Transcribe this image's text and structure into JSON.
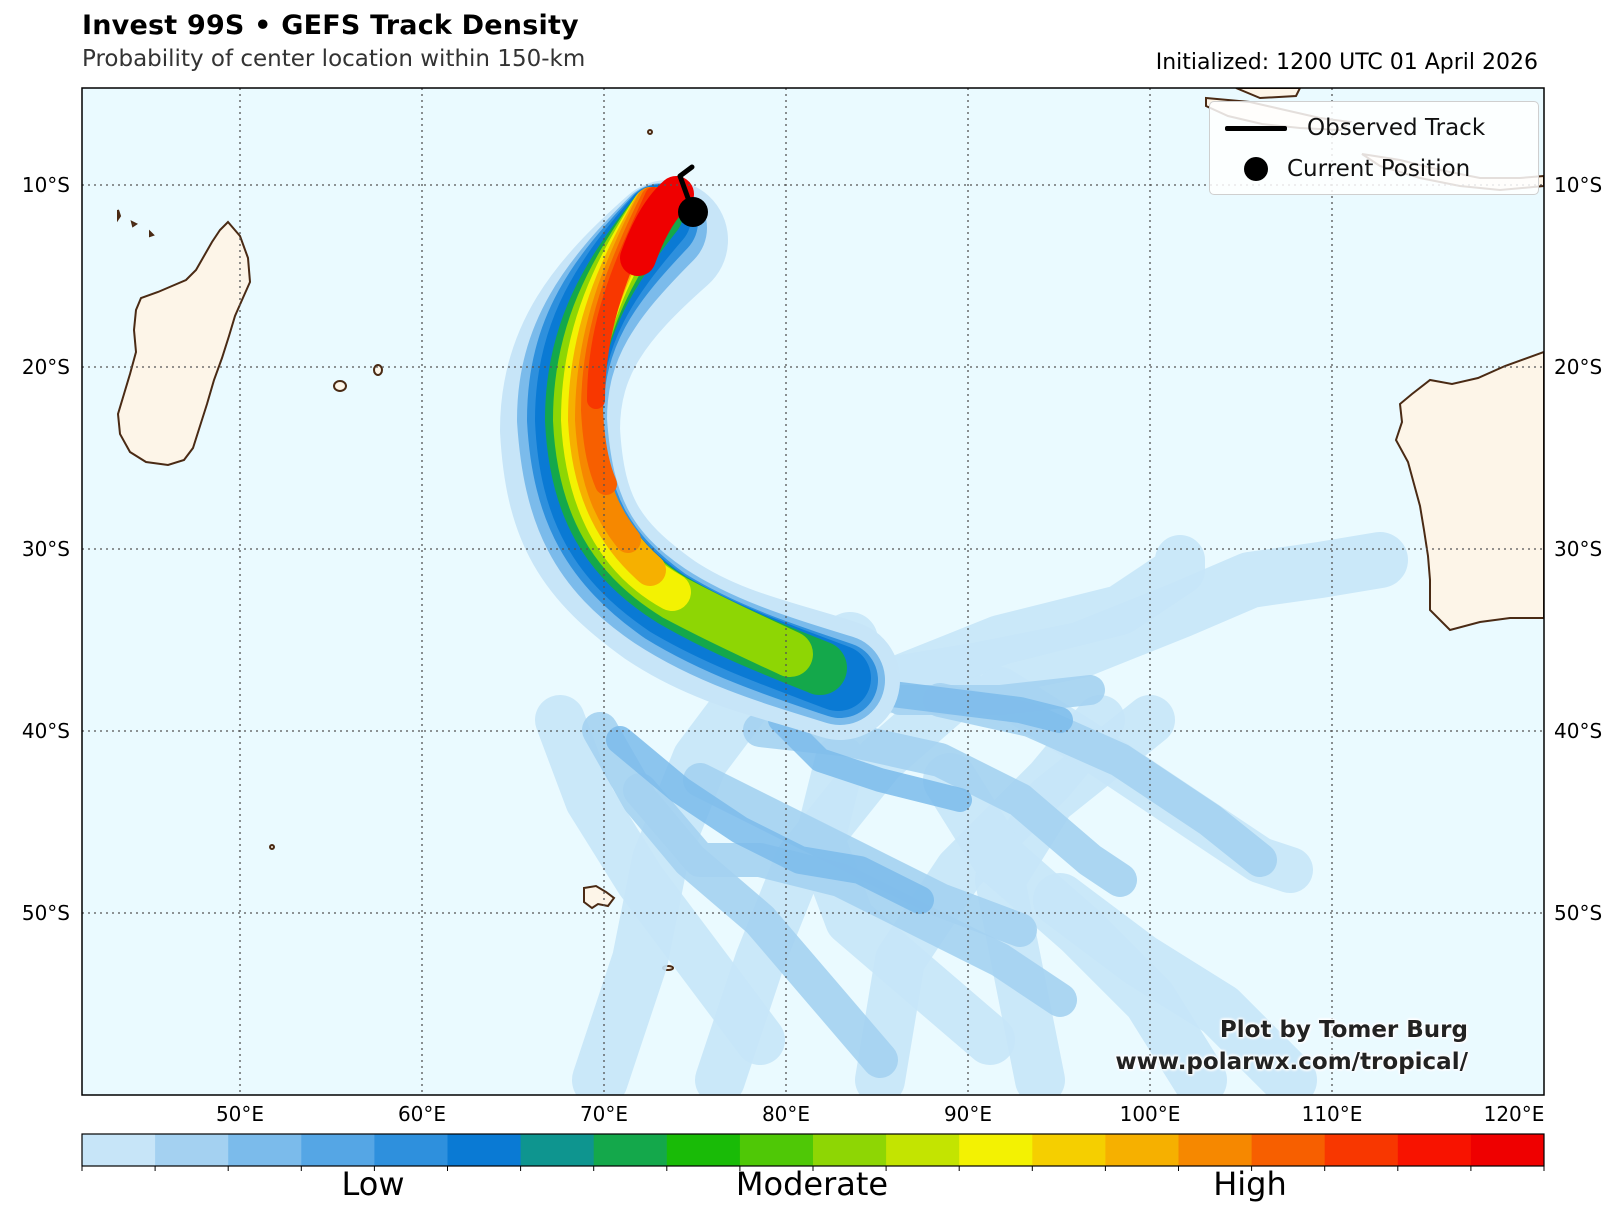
{
  "header": {
    "title": "Invest 99S • GEFS Track Density",
    "subtitle": "Probability of center location within 150-km",
    "initialized": "Initialized: 1200 UTC 01 April 2026"
  },
  "map": {
    "lon_ticks": [
      "50°E",
      "60°E",
      "70°E",
      "80°E",
      "90°E",
      "100°E",
      "110°E",
      "120°E"
    ],
    "lat_ticks": [
      "10°S",
      "20°S",
      "30°S",
      "40°S",
      "50°S"
    ],
    "ocean_color": "#eafaff",
    "land_color": "#fdf5e8",
    "coast_color": "#4a2a14"
  },
  "legend": {
    "observed_track": "Observed Track",
    "current_position": "Current Position"
  },
  "credit": {
    "line1": "Plot by Tomer Burg",
    "line2": "www.polarwx.com/tropical/"
  },
  "colorbar": {
    "colors": [
      "#c7e5f8",
      "#a4d1f1",
      "#7bbbeb",
      "#55a6e5",
      "#2e90dd",
      "#0a7ad4",
      "#0e958f",
      "#14a84b",
      "#19bb07",
      "#4fc806",
      "#8ed604",
      "#c3e401",
      "#f3f202",
      "#f5cf00",
      "#f6b000",
      "#f68800",
      "#f75f00",
      "#f83700",
      "#f81300",
      "#ef0000"
    ],
    "labels": [
      "Low",
      "Moderate",
      "High"
    ]
  }
}
